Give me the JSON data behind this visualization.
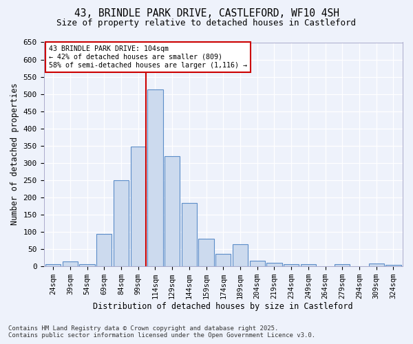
{
  "title_line1": "43, BRINDLE PARK DRIVE, CASTLEFORD, WF10 4SH",
  "title_line2": "Size of property relative to detached houses in Castleford",
  "xlabel": "Distribution of detached houses by size in Castleford",
  "ylabel": "Number of detached properties",
  "categories": [
    "24sqm",
    "39sqm",
    "54sqm",
    "69sqm",
    "84sqm",
    "99sqm",
    "114sqm",
    "129sqm",
    "144sqm",
    "159sqm",
    "174sqm",
    "189sqm",
    "204sqm",
    "219sqm",
    "234sqm",
    "249sqm",
    "264sqm",
    "279sqm",
    "294sqm",
    "309sqm",
    "324sqm"
  ],
  "values": [
    5,
    13,
    5,
    93,
    249,
    347,
    514,
    320,
    184,
    80,
    35,
    63,
    15,
    10,
    5,
    5,
    0,
    5,
    0,
    7,
    4
  ],
  "bar_color": "#ccdaee",
  "bar_edge_color": "#5b8cc8",
  "vline_bar_index": 5,
  "vline_color": "#cc0000",
  "annotation_line1": "43 BRINDLE PARK DRIVE: 104sqm",
  "annotation_line2": "← 42% of detached houses are smaller (809)",
  "annotation_line3": "58% of semi-detached houses are larger (1,116) →",
  "annotation_box_edgecolor": "#cc0000",
  "annotation_bg": "#ffffff",
  "ylim_max": 650,
  "ytick_step": 50,
  "bg_color": "#eef2fb",
  "grid_color": "#ffffff",
  "footer_line1": "Contains HM Land Registry data © Crown copyright and database right 2025.",
  "footer_line2": "Contains public sector information licensed under the Open Government Licence v3.0."
}
